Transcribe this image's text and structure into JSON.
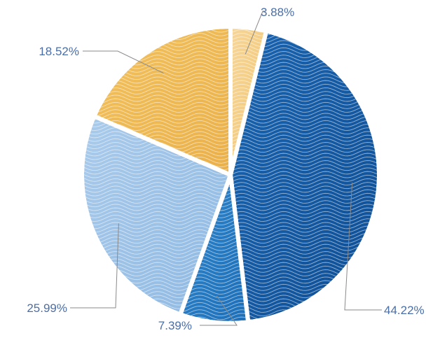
{
  "chart_data": {
    "type": "pie",
    "slices": [
      {
        "label": "3.88%",
        "value": 3.88,
        "color": "#f6d69a",
        "color_dark": "#f1c56e"
      },
      {
        "label": "44.22%",
        "value": 44.22,
        "color": "#1a64b0",
        "color_dark": "#0f4f95"
      },
      {
        "label": "7.39%",
        "value": 7.39,
        "color": "#2f86cc",
        "color_dark": "#1d6fb8"
      },
      {
        "label": "25.99%",
        "value": 25.99,
        "color": "#aacbeb",
        "color_dark": "#8fb9e2"
      },
      {
        "label": "18.52%",
        "value": 18.52,
        "color": "#f2c25e",
        "color_dark": "#eab04a"
      }
    ],
    "start_angle_deg": 0,
    "direction": "clockwise",
    "legend": "none",
    "texture": "wavy-lines"
  }
}
